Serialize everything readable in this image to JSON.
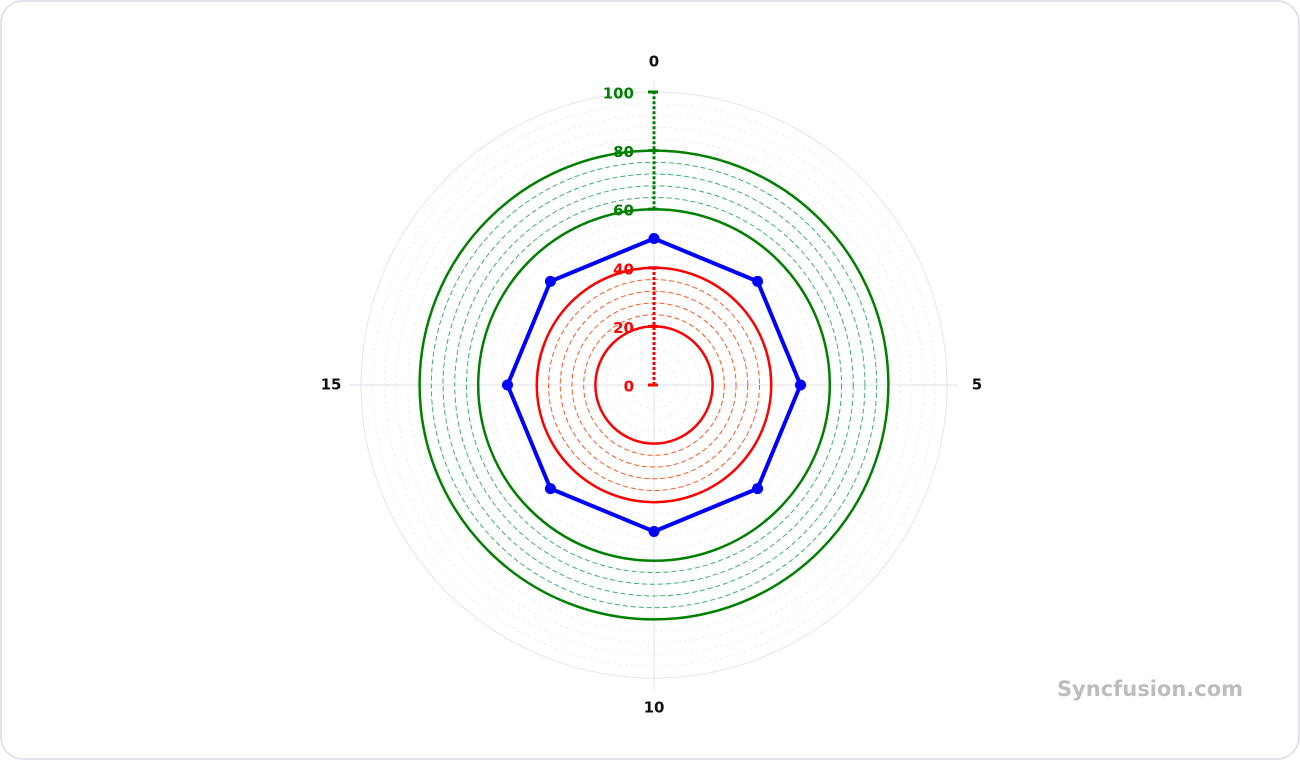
{
  "chart_data": {
    "type": "polar",
    "x": [
      0,
      2.5,
      5,
      7.5,
      10,
      12.5,
      15,
      17.5
    ],
    "xlim": [
      0,
      20
    ],
    "xticks": [
      0,
      5,
      10,
      15
    ],
    "ylim": [
      0,
      100
    ],
    "yticks": [
      0,
      20,
      40,
      60,
      80,
      100
    ],
    "minor_per_interval": 4,
    "segments": [
      {
        "from": 0,
        "to": 40,
        "color": "#ff0000"
      },
      {
        "from": 60,
        "to": 100,
        "color": "#008000"
      }
    ],
    "series": [
      {
        "color": "#0000ff",
        "values": [
          50,
          50,
          50,
          50,
          50,
          50,
          50,
          50
        ]
      }
    ],
    "watermark": "Syncfusion.com"
  }
}
